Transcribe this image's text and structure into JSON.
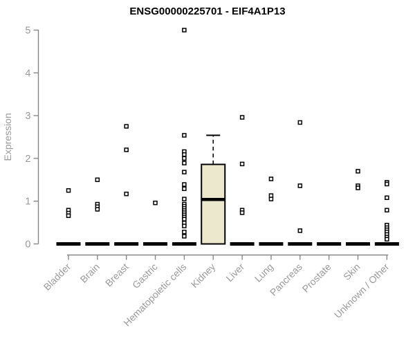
{
  "chart_data": {
    "type": "boxplot-scatter",
    "title": "ENSG00000225701 - EIF4A1P13",
    "xlabel": "",
    "ylabel": "Expression",
    "ylim": [
      0,
      5
    ],
    "y_ticks": [
      0,
      1,
      2,
      3,
      4,
      5
    ],
    "grid": false,
    "legend": "none",
    "categories": [
      "Bladder",
      "Brain",
      "Breast",
      "Gastric",
      "Hematopoietic cells",
      "Kidney",
      "Liver",
      "Lung",
      "Pancreas",
      "Prostate",
      "Skin",
      "Unknown / Other"
    ],
    "groups": [
      {
        "category": "Bladder",
        "box": {
          "min": 0,
          "q1": 0,
          "median": 0,
          "q3": 0,
          "max": 0
        },
        "points": [
          1.25,
          0.79,
          0.72,
          0.66
        ]
      },
      {
        "category": "Brain",
        "box": {
          "min": 0,
          "q1": 0,
          "median": 0,
          "q3": 0,
          "max": 0
        },
        "points": [
          1.5,
          0.93,
          0.87,
          0.81
        ]
      },
      {
        "category": "Breast",
        "box": {
          "min": 0,
          "q1": 0,
          "median": 0,
          "q3": 0,
          "max": 0
        },
        "points": [
          2.75,
          2.2,
          1.17
        ]
      },
      {
        "category": "Gastric",
        "box": {
          "min": 0,
          "q1": 0,
          "median": 0,
          "q3": 0,
          "max": 0
        },
        "points": [
          0.96
        ]
      },
      {
        "category": "Hematopoietic cells",
        "box": {
          "min": 0,
          "q1": 0,
          "median": 0,
          "q3": 0,
          "max": 0
        },
        "points": [
          5.0,
          2.54,
          2.16,
          2.09,
          2.0,
          1.89,
          1.68,
          1.39,
          1.29,
          1.05,
          0.93,
          0.88,
          0.83,
          0.78,
          0.73,
          0.68,
          0.63,
          0.58,
          0.49,
          0.42,
          0.28,
          0.18
        ]
      },
      {
        "category": "Kidney",
        "box": {
          "min": 0,
          "q1": 0,
          "median": 1.04,
          "q3": 1.86,
          "max": 2.54
        },
        "points": []
      },
      {
        "category": "Liver",
        "box": {
          "min": 0,
          "q1": 0,
          "median": 0,
          "q3": 0,
          "max": 0
        },
        "points": [
          2.96,
          1.87,
          0.79,
          0.73
        ]
      },
      {
        "category": "Lung",
        "box": {
          "min": 0,
          "q1": 0,
          "median": 0,
          "q3": 0,
          "max": 0
        },
        "points": [
          1.52,
          1.13,
          1.05
        ]
      },
      {
        "category": "Pancreas",
        "box": {
          "min": 0,
          "q1": 0,
          "median": 0,
          "q3": 0,
          "max": 0
        },
        "points": [
          2.84,
          1.36,
          0.31
        ]
      },
      {
        "category": "Prostate",
        "box": {
          "min": 0,
          "q1": 0,
          "median": 0,
          "q3": 0,
          "max": 0
        },
        "points": []
      },
      {
        "category": "Skin",
        "box": {
          "min": 0,
          "q1": 0,
          "median": 0,
          "q3": 0,
          "max": 0
        },
        "points": [
          1.7,
          1.36,
          1.31
        ]
      },
      {
        "category": "Unknown / Other",
        "box": {
          "min": 0,
          "q1": 0,
          "median": 0,
          "q3": 0,
          "max": 0
        },
        "points": [
          1.44,
          1.4,
          1.08,
          0.79,
          0.44,
          0.38,
          0.33,
          0.28,
          0.22,
          0.16,
          0.11
        ]
      }
    ],
    "colors": {
      "box_fill": "#ECE8CE",
      "box_stroke": "#000000",
      "median": "#000000",
      "point_stroke": "#000000",
      "point_fill": "#ffffff",
      "zero_bar": "#000000",
      "axis": "#878787",
      "tick_label": "#9a9a9a",
      "title": "#000000",
      "background": "#ffffff"
    }
  }
}
